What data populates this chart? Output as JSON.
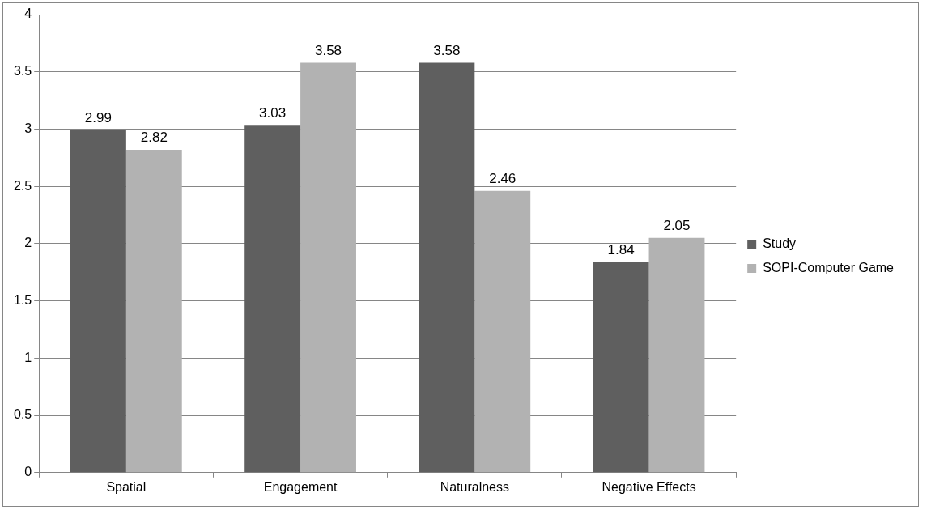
{
  "chart_data": {
    "type": "bar",
    "categories": [
      "Spatial",
      "Engagement",
      "Naturalness",
      "Negative Effects"
    ],
    "series": [
      {
        "name": "Study",
        "color": "#5f5f5f",
        "values": [
          2.99,
          3.03,
          3.58,
          1.84
        ]
      },
      {
        "name": "SOPI-Computer Game",
        "color": "#b2b2b2",
        "values": [
          2.82,
          3.58,
          2.46,
          2.05
        ]
      }
    ],
    "ylim": [
      0,
      4
    ],
    "yticks": [
      0,
      0.5,
      1,
      1.5,
      2,
      2.5,
      3,
      3.5,
      4
    ],
    "grid": "y",
    "legend": "right",
    "data_labels": true
  }
}
